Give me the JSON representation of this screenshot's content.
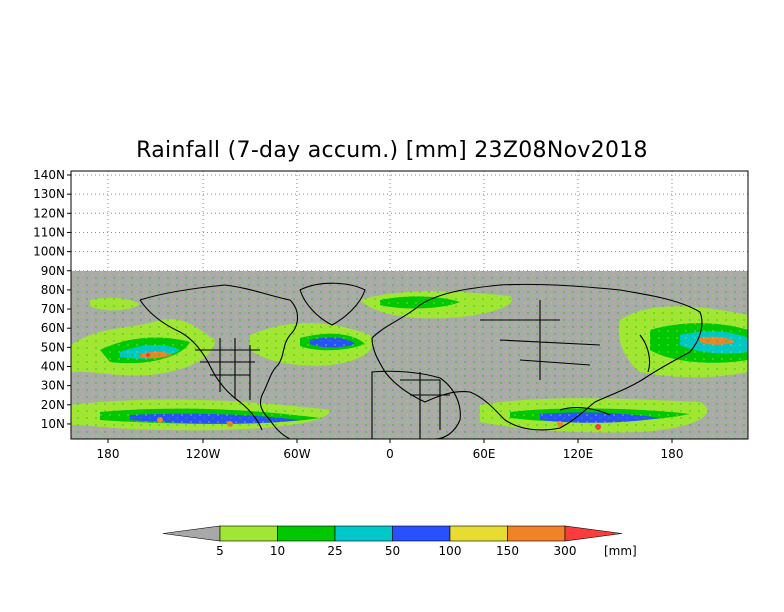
{
  "title": "Rainfall (7-day accum.) [mm] 23Z08Nov2018",
  "map": {
    "lat_labels": [
      "140N",
      "130N",
      "120N",
      "110N",
      "100N",
      "90N",
      "80N",
      "70N",
      "60N",
      "50N",
      "40N",
      "30N",
      "20N",
      "10N"
    ],
    "lon_labels": [
      "180",
      "120W",
      "60W",
      "0",
      "60E",
      "120E",
      "180"
    ],
    "no_data_color": "#aaaaaa",
    "land_border_color": "#000000"
  },
  "colorbar": {
    "levels": [
      "5",
      "10",
      "25",
      "50",
      "100",
      "150",
      "300"
    ],
    "unit": "[mm]",
    "colors": [
      "#a8a8a8",
      "#a0e632",
      "#00c800",
      "#00c8c8",
      "#2850ff",
      "#e6dc32",
      "#f08228",
      "#fa3c3c"
    ]
  }
}
